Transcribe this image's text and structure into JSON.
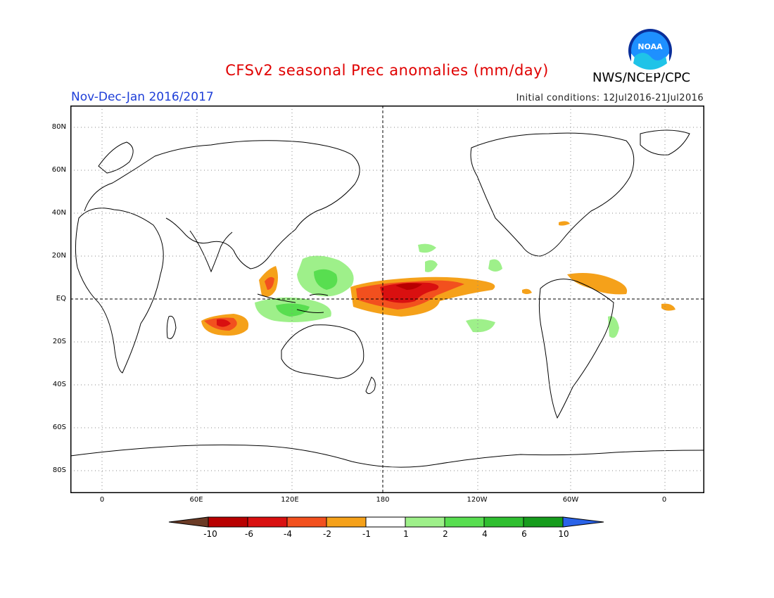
{
  "title": "CFSv2 seasonal Prec anomalies (mm/day)",
  "period": "Nov-Dec-Jan 2016/2017",
  "initial_conditions": "Initial conditions: 12Jul2016-21Jul2016",
  "agency": "NWS/NCEP/CPC",
  "logo_text": "NOAA",
  "map": {
    "projection": "equirectangular",
    "lon_range": [
      -20,
      380
    ],
    "lat_range": [
      -90,
      90
    ],
    "dashed_reference_lines": [
      "EQ",
      "180"
    ],
    "lat_labels": [
      "80N",
      "60N",
      "40N",
      "20N",
      "EQ",
      "20S",
      "40S",
      "60S",
      "80S"
    ],
    "lon_labels": [
      "0",
      "60E",
      "120E",
      "180",
      "120W",
      "60W",
      "0"
    ]
  },
  "colorbar": {
    "labels": [
      "-10",
      "-6",
      "-4",
      "-2",
      "-1",
      "1",
      "2",
      "4",
      "6",
      "10"
    ],
    "colors": [
      "#6b3b26",
      "#b80000",
      "#d91010",
      "#f2501e",
      "#f5a11a",
      "#ffffff",
      "#9ef08a",
      "#58de50",
      "#2fbf30",
      "#169c1c",
      "#2a63e8"
    ]
  },
  "anomalies": [
    {
      "region": "central-equatorial-pacific",
      "sign": "dry",
      "max_class": "-6"
    },
    {
      "region": "southern-indian-ocean",
      "sign": "dry",
      "max_class": "-4"
    },
    {
      "region": "western-pacific-warm-pool",
      "sign": "wet",
      "max_class": "4"
    },
    {
      "region": "maritime-continent",
      "sign": "wet",
      "max_class": "4"
    },
    {
      "region": "tropical-atlantic",
      "sign": "dry",
      "max_class": "-2"
    }
  ]
}
